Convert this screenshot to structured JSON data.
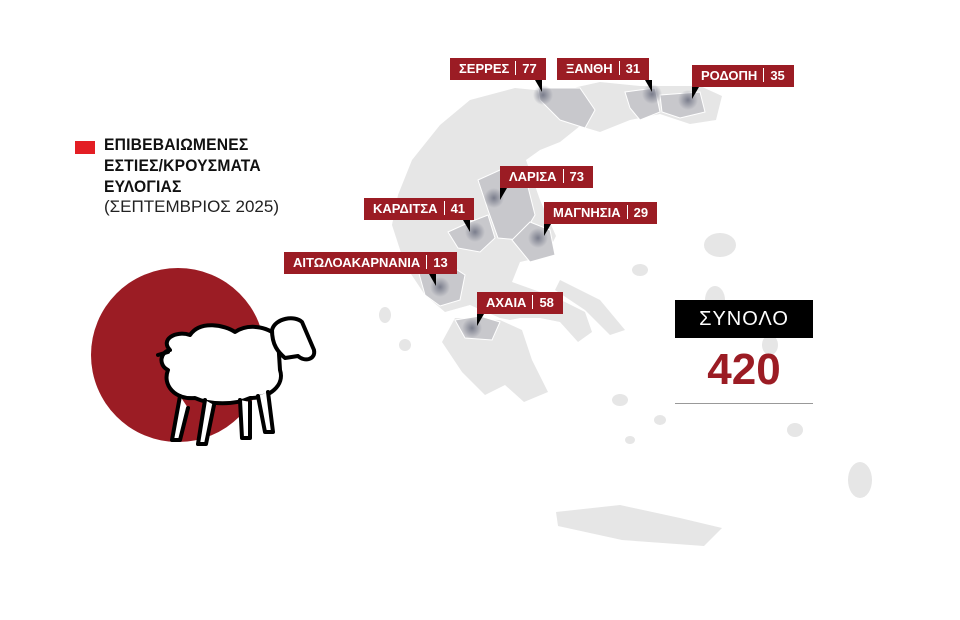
{
  "legend": {
    "title_lines": [
      "ΕΠΙΒΕΒΑΙΩΜΕΝΕΣ",
      "ΕΣΤΙΕΣ/ΚΡΟΥΣΜΑΤΑ",
      "ΕΥΛΟΓΙΑΣ"
    ],
    "subtitle": "(ΣΕΠΤΕΜΒΡΙΟΣ 2025)",
    "color": "#e31e24"
  },
  "regions": [
    {
      "name": "ΣΕΡΡΕΣ",
      "count": "77"
    },
    {
      "name": "ΞΑΝΘΗ",
      "count": "31"
    },
    {
      "name": "ΡΟΔΟΠΗ",
      "count": "35"
    },
    {
      "name": "ΛΑΡΙΣΑ",
      "count": "73"
    },
    {
      "name": "ΚΑΡΔΙΤΣΑ",
      "count": "41"
    },
    {
      "name": "ΜΑΓΝΗΣΙΑ",
      "count": "29"
    },
    {
      "name": "ΑΙΤΩΛΟΑΚΑΡΝΑΝΙΑ",
      "count": "13"
    },
    {
      "name": "ΑΧΑΙΑ",
      "count": "58"
    }
  ],
  "total": {
    "label": "ΣΥΝΟΛΟ",
    "value": "420"
  },
  "colors": {
    "label_bg": "#9b1c24",
    "map_land": "#e6e6e6",
    "affected_region": "#c8c8cc",
    "circle": "#9b1c24"
  },
  "icons": {
    "sheep": "sheep-icon"
  }
}
